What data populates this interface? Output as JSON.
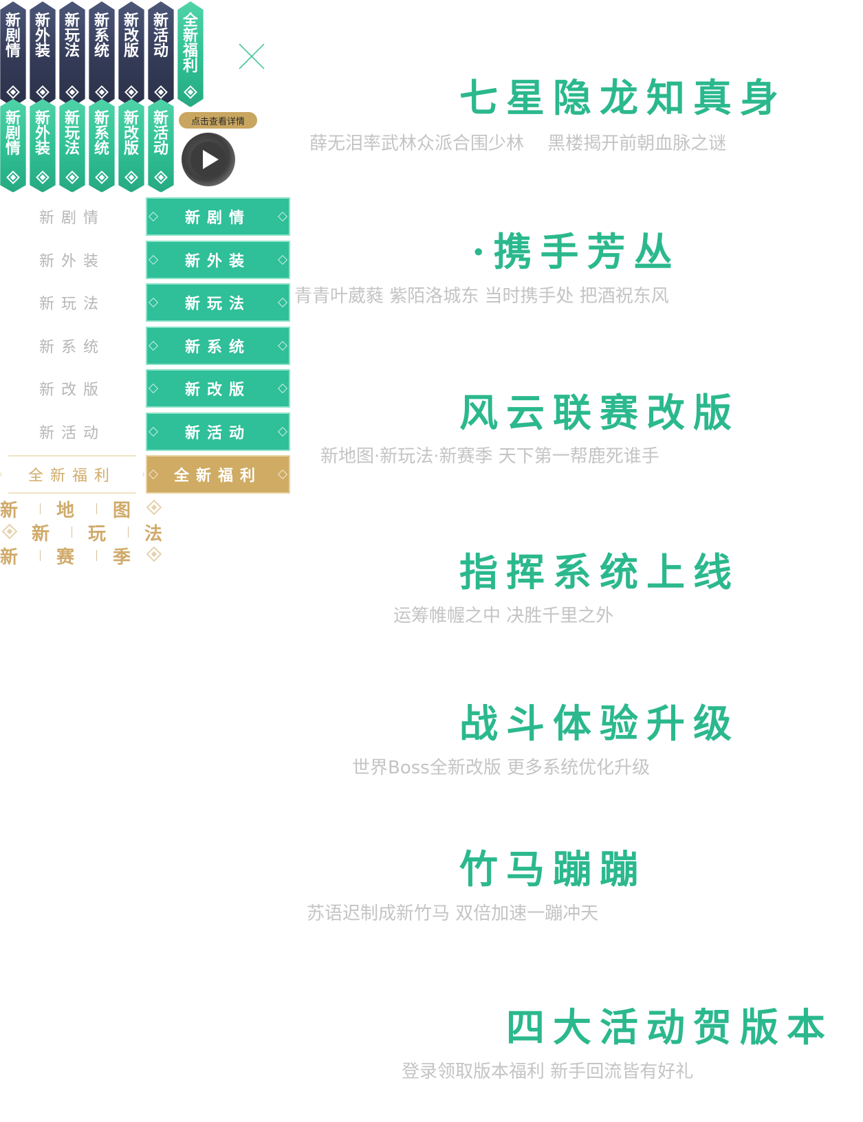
{
  "vertical_tabs_dark": [
    "新剧情",
    "新外装",
    "新玩法",
    "新系统",
    "新改版",
    "新活动",
    "全新福利"
  ],
  "vertical_tab_active": "全新福利",
  "vertical_tabs_green": [
    "新剧情",
    "新外装",
    "新玩法",
    "新系统",
    "新改版",
    "新活动"
  ],
  "video": {
    "badge": "点击查看详情"
  },
  "menu": [
    {
      "label": "新剧情"
    },
    {
      "label": "新外装"
    },
    {
      "label": "新玩法"
    },
    {
      "label": "新系统"
    },
    {
      "label": "新改版"
    },
    {
      "label": "新活动"
    }
  ],
  "welfare": {
    "label": "全新福利"
  },
  "gold_grid": {
    "row1": [
      "新",
      "地",
      "图"
    ],
    "row2": [
      "新",
      "玩",
      "法"
    ],
    "row3": [
      "新",
      "赛",
      "季"
    ]
  },
  "sections": [
    {
      "title": "七星隐龙知真身",
      "subtitle": "薛无泪率武林众派合围少林　 黑楼揭开前朝血脉之谜"
    },
    {
      "title": "·携手芳丛",
      "subtitle": "青青叶葳蕤  紫陌洛城东 当时携手处 把酒祝东风"
    },
    {
      "title": "风云联赛改版",
      "subtitle": "新地图·新玩法·新赛季  天下第一帮鹿死谁手"
    },
    {
      "title": "指挥系统上线",
      "subtitle": "运筹帷幄之中 决胜千里之外"
    },
    {
      "title": "战斗体验升级",
      "subtitle": "世界Boss全新改版 更多系统优化升级"
    },
    {
      "title": "竹马蹦蹦",
      "subtitle": "苏语迟制成新竹马 双倍加速一蹦冲天"
    },
    {
      "title": "四大活动贺版本",
      "subtitle": "登录领取版本福利 新手回流皆有好礼"
    }
  ],
  "colors": {
    "accent": "#2bb88d",
    "dark_tab": "#343b57",
    "gold": "#cfab64",
    "subtext": "#c4c4c4"
  },
  "icons": {
    "close": "close-icon",
    "play": "play-icon"
  }
}
